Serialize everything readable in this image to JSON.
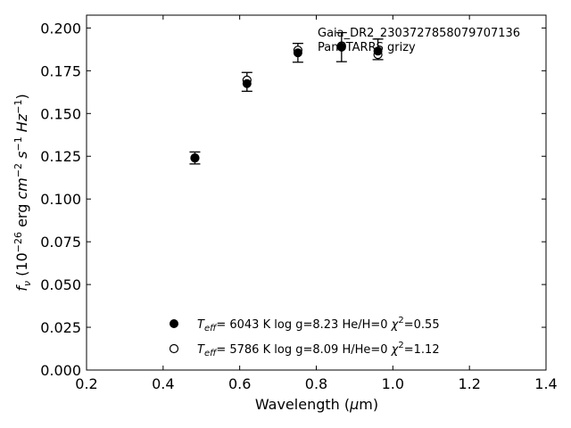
{
  "chart_data": {
    "type": "scatter",
    "xlabel": "Wavelength (μm)",
    "ylabel": "f_ν (10^-26 erg cm^-2 s^-1 Hz^-1)",
    "xlim": [
      0.2,
      1.4
    ],
    "ylim": [
      0.0,
      0.2075
    ],
    "x_ticks": [
      "0.2",
      "0.4",
      "0.6",
      "0.8",
      "1.0",
      "1.2",
      "1.4"
    ],
    "y_ticks": [
      "0.000",
      "0.025",
      "0.050",
      "0.075",
      "0.100",
      "0.125",
      "0.150",
      "0.175",
      "0.200"
    ],
    "grid": false,
    "annotation_lines": [
      "Gaia_DR2_2303727858079707136",
      "PanSTARRS grizy"
    ],
    "observed": {
      "x": [
        0.483,
        0.619,
        0.752,
        0.866,
        0.961
      ],
      "y": [
        0.124,
        0.1685,
        0.1855,
        0.1888,
        0.1875
      ],
      "err": [
        0.0035,
        0.0055,
        0.0055,
        0.0085,
        0.006
      ]
    },
    "series": [
      {
        "marker": "filled-circle",
        "legend": {
          "teff": "6043 K",
          "logg": "log g=8.23",
          "comp": "He/H=0",
          "chi2": "=0.55"
        },
        "x": [
          0.483,
          0.619,
          0.752,
          0.866,
          0.961
        ],
        "y": [
          0.124,
          0.1675,
          0.1855,
          0.1888,
          0.1865
        ]
      },
      {
        "marker": "open-circle",
        "legend": {
          "teff": "5786 K",
          "logg": "log g=8.09",
          "comp": "H/He=0",
          "chi2": "=1.12"
        },
        "x": [
          0.483,
          0.619,
          0.752,
          0.866,
          0.961
        ],
        "y": [
          0.124,
          0.1695,
          0.187,
          0.1895,
          0.1845
        ]
      }
    ],
    "legend_position": "lower-center",
    "colors": {
      "marker": "#000000",
      "background": "#ffffff"
    }
  }
}
